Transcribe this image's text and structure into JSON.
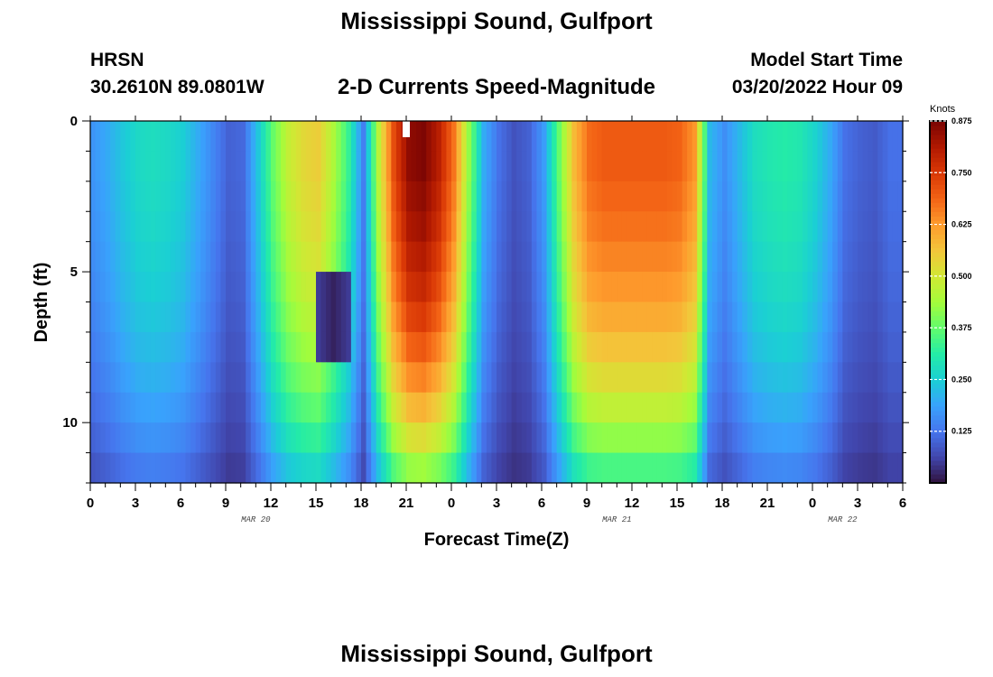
{
  "header": {
    "title": "Mississippi Sound, Gulfport",
    "station_id": "HRSN",
    "coordinates": "30.2610N  89.0801W",
    "chart_title": "2-D Currents Speed-Magnitude",
    "model_start_label": "Model Start Time",
    "model_start_value": "03/20/2022 Hour 09"
  },
  "footer": {
    "title": "Mississippi Sound, Gulfport"
  },
  "chart_data": {
    "type": "heatmap",
    "title": "2-D Currents Speed-Magnitude",
    "xlabel": "Forecast Time(Z)",
    "ylabel": "Depth (ft)",
    "x_tick_labels": [
      "0",
      "3",
      "6",
      "9",
      "12",
      "15",
      "18",
      "21",
      "0",
      "3",
      "6",
      "9",
      "12",
      "15",
      "18",
      "21",
      "0",
      "3",
      "6"
    ],
    "x_date_labels": [
      {
        "label": "MAR 20",
        "hour_index": 11
      },
      {
        "label": "MAR 21",
        "hour_index": 35
      },
      {
        "label": "MAR 22",
        "hour_index": 50
      }
    ],
    "y_ticks": [
      0,
      5,
      10
    ],
    "ylim": [
      0,
      12
    ],
    "y_inverted": true,
    "x_range_hours": [
      0,
      54
    ],
    "colorbar": {
      "label": "Knots",
      "ticks": [
        0.125,
        0.25,
        0.375,
        0.5,
        0.625,
        0.75,
        0.875
      ],
      "tick_labels": [
        "0.125",
        "0.250",
        "0.375",
        "0.500",
        "0.625",
        "0.750",
        "0.875"
      ],
      "range": [
        0,
        0.875
      ],
      "colors": [
        "#30123b",
        "#4145ab",
        "#4675ed",
        "#39a2fc",
        "#1bcfd4",
        "#24eca6",
        "#61fc6c",
        "#a4fc3b",
        "#d1e834",
        "#f3c63a",
        "#fe9b2d",
        "#f36315",
        "#d93806",
        "#b11901",
        "#7a0403"
      ]
    },
    "depths_ft": [
      0.25,
      1.25,
      2.25,
      3.25,
      4.25,
      5.25,
      6.25,
      7.25,
      8.25,
      9.25,
      10.25,
      11.25
    ],
    "speed_profile_surface_knots": [
      0.17,
      0.2,
      0.24,
      0.27,
      0.28,
      0.27,
      0.25,
      0.2,
      0.15,
      0.1,
      0.11,
      0.24,
      0.38,
      0.48,
      0.53,
      0.55,
      0.45,
      0.33,
      0.14,
      0.47,
      0.72,
      0.85,
      0.87,
      0.8,
      0.67,
      0.42,
      0.2,
      0.12,
      0.08,
      0.1,
      0.18,
      0.38,
      0.58,
      0.68,
      0.7,
      0.7,
      0.7,
      0.7,
      0.7,
      0.69,
      0.63,
      0.22,
      0.16,
      0.22,
      0.28,
      0.3,
      0.31,
      0.3,
      0.26,
      0.2,
      0.12,
      0.1,
      0.09,
      0.12
    ],
    "speed_profile_depth_factor": [
      1.0,
      1.0,
      0.98,
      0.96,
      0.93,
      0.9,
      0.86,
      0.81,
      0.75,
      0.68,
      0.6,
      0.5
    ],
    "min_speed_band": {
      "hours": [
        15,
        17
      ],
      "depths_ft": [
        5,
        8
      ],
      "value_knots": 0.02
    },
    "gap_marker_hour": 21
  }
}
